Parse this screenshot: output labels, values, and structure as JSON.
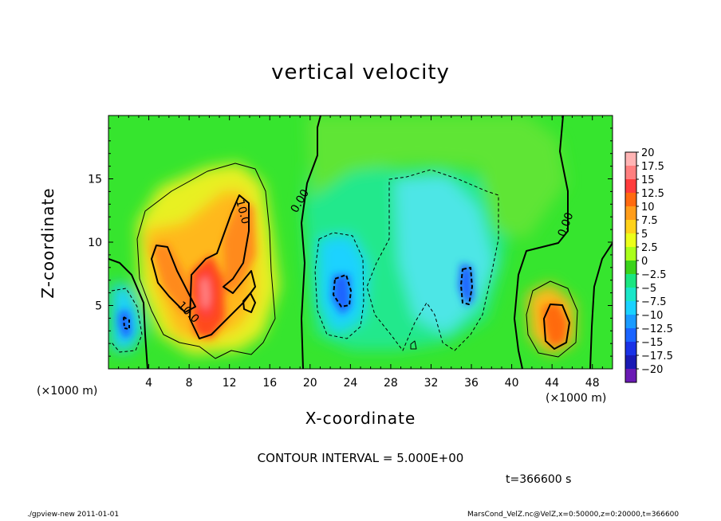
{
  "title": "vertical velocity",
  "footer": {
    "left": "./gpview-new  2011-01-01",
    "right": "MarsCond_VelZ.nc@VelZ,x=0:50000,z=0:20000,t=366600",
    "contour_interval": "CONTOUR INTERVAL = 5.000E+00",
    "time": "t=366600 s"
  },
  "colors": {
    "background": "#36e52e",
    "axis": "#000000"
  },
  "chart_data": {
    "type": "heatmap",
    "title": "vertical velocity",
    "xlabel": "X-coordinate",
    "ylabel": "Z-coordinate",
    "x_unit": "(×1000 m)",
    "y_unit": "(×1000 m)",
    "xlim": [
      0,
      50
    ],
    "ylim": [
      0,
      20
    ],
    "xticks": [
      4,
      8,
      12,
      16,
      20,
      24,
      28,
      32,
      36,
      40,
      44,
      48
    ],
    "yticks": [
      5,
      10,
      15
    ],
    "contour_interval": 5,
    "contour_labels": [
      {
        "text": "10.0",
        "x": 13,
        "z": 12.5
      },
      {
        "text": "10.0",
        "x": 7.5,
        "z": 4.5
      },
      {
        "text": "0.00",
        "x": 19.2,
        "z": 13.5
      },
      {
        "text": "0.00",
        "x": 45.3,
        "z": 11.0
      }
    ],
    "colorbar": {
      "labels": [
        "20",
        "17.5",
        "15",
        "12.5",
        "10",
        "7.5",
        "5",
        "2.5",
        "0",
        "−2.5",
        "−5",
        "−7.5",
        "−10",
        "−12.5",
        "−15",
        "−17.5",
        "−20"
      ],
      "colors": [
        "#ffb4b4",
        "#ff7f7f",
        "#ff3c3c",
        "#ff6a10",
        "#ff9d1a",
        "#ffd21a",
        "#ecff1a",
        "#aaff1a",
        "#3bd31a",
        "#1ae680",
        "#1ae6c8",
        "#1ad2ff",
        "#1a9bff",
        "#1a64ff",
        "#1a32e6",
        "#1a1ab4",
        "#6a1ab4"
      ]
    },
    "features": [
      {
        "kind": "updraft",
        "x": 9.8,
        "z": 6.5,
        "peak": 18
      },
      {
        "kind": "updraft",
        "x": 12,
        "z": 9.5,
        "peak": 11
      },
      {
        "kind": "updraft",
        "x": 44.5,
        "z": 3.5,
        "peak": 11
      },
      {
        "kind": "downdraft",
        "x": 1.5,
        "z": 3.5,
        "peak": -8
      },
      {
        "kind": "downdraft",
        "x": 23.5,
        "z": 6.5,
        "peak": -11
      },
      {
        "kind": "downdraft",
        "x": 35.5,
        "z": 7.0,
        "peak": -10
      },
      {
        "kind": "downdraft",
        "x": 30,
        "z": 9.0,
        "peak": -6
      }
    ]
  }
}
